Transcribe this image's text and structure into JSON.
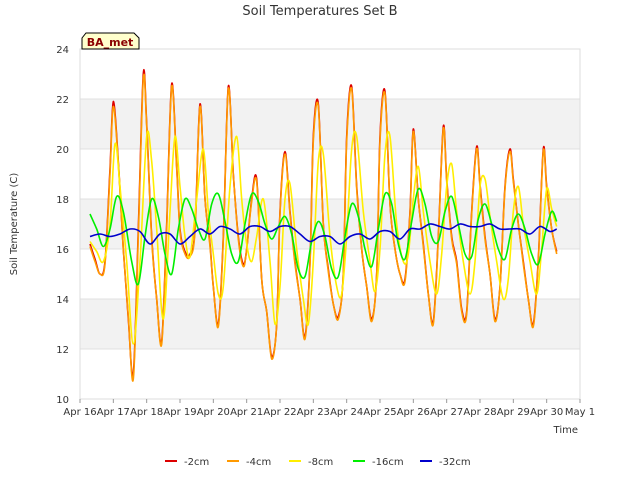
{
  "chart_data": {
    "type": "line",
    "title": "Soil Temperatures Set B",
    "xlabel": "Time",
    "ylabel": "Soil Temperature (C)",
    "site_badge": "BA_met",
    "ylim": [
      10,
      24
    ],
    "yticks": [
      10,
      12,
      14,
      16,
      18,
      20,
      22,
      24
    ],
    "xlim": [
      "2024-04-16",
      "2024-05-01"
    ],
    "xtick_labels": [
      "Apr 16",
      "Apr 17",
      "Apr 18",
      "Apr 19",
      "Apr 20",
      "Apr 21",
      "Apr 22",
      "Apr 23",
      "Apr 24",
      "Apr 25",
      "Apr 26",
      "Apr 27",
      "Apr 28",
      "Apr 29",
      "Apr 30",
      "May 1"
    ],
    "grid": "horizontal bands",
    "legend_position": "bottom",
    "x_unit": "days since Apr 16",
    "series": [
      {
        "name": "-2cm",
        "color": "#dd0000",
        "x": [
          0.3,
          0.45,
          0.6,
          0.75,
          0.9,
          1.0,
          1.15,
          1.3,
          1.45,
          1.6,
          1.75,
          1.9,
          2.0,
          2.15,
          2.3,
          2.45,
          2.6,
          2.75,
          2.9,
          3.0,
          3.15,
          3.3,
          3.45,
          3.6,
          3.75,
          3.9,
          4.0,
          4.15,
          4.3,
          4.45,
          4.6,
          4.75,
          4.9,
          5.0,
          5.15,
          5.3,
          5.45,
          5.6,
          5.75,
          5.9,
          6.0,
          6.15,
          6.3,
          6.45,
          6.6,
          6.75,
          6.9,
          7.0,
          7.15,
          7.3,
          7.45,
          7.6,
          7.75,
          7.9,
          8.0,
          8.15,
          8.3,
          8.45,
          8.6,
          8.75,
          8.9,
          9.0,
          9.15,
          9.3,
          9.45,
          9.6,
          9.75,
          9.9,
          10.0,
          10.15,
          10.3,
          10.45,
          10.6,
          10.75,
          10.9,
          11.0,
          11.15,
          11.3,
          11.45,
          11.6,
          11.75,
          11.9,
          12.0,
          12.15,
          12.3,
          12.45,
          12.6,
          12.75,
          12.9,
          13.0,
          13.15,
          13.3,
          13.45,
          13.6,
          13.75,
          13.9,
          14.0,
          14.15,
          14.3
        ],
        "y": [
          16.2,
          15.6,
          15.0,
          15.5,
          19.2,
          21.9,
          19.5,
          16.0,
          13.2,
          11.0,
          16.8,
          23.0,
          21.0,
          16.5,
          14.0,
          12.3,
          17.0,
          22.6,
          19.3,
          16.8,
          15.9,
          15.8,
          16.8,
          21.8,
          18.0,
          16.2,
          14.5,
          13.0,
          16.5,
          22.5,
          19.0,
          16.5,
          15.4,
          16.0,
          18.0,
          18.8,
          14.8,
          13.5,
          11.7,
          13.0,
          17.5,
          19.9,
          17.5,
          15.5,
          14.0,
          12.5,
          15.5,
          20.5,
          21.8,
          17.0,
          15.2,
          13.8,
          13.3,
          15.0,
          20.5,
          22.5,
          18.5,
          16.0,
          14.5,
          13.2,
          15.0,
          20.5,
          22.3,
          17.8,
          16.0,
          15.0,
          14.8,
          17.5,
          20.8,
          18.0,
          16.2,
          14.2,
          13.1,
          16.5,
          20.9,
          18.8,
          16.5,
          15.5,
          13.6,
          13.5,
          17.5,
          20.1,
          18.6,
          16.5,
          15.0,
          13.2,
          14.5,
          18.5,
          20.0,
          18.8,
          17.0,
          15.5,
          14.0,
          13.0,
          15.6,
          20.0,
          18.5,
          16.8,
          15.9
        ]
      },
      {
        "name": "-4cm",
        "color": "#ff9900",
        "x": [
          0.3,
          0.45,
          0.6,
          0.75,
          0.9,
          1.0,
          1.15,
          1.3,
          1.45,
          1.6,
          1.75,
          1.9,
          2.0,
          2.15,
          2.3,
          2.45,
          2.6,
          2.75,
          2.9,
          3.0,
          3.15,
          3.3,
          3.45,
          3.6,
          3.75,
          3.9,
          4.0,
          4.15,
          4.3,
          4.45,
          4.6,
          4.75,
          4.9,
          5.0,
          5.15,
          5.3,
          5.45,
          5.6,
          5.75,
          5.9,
          6.0,
          6.15,
          6.3,
          6.45,
          6.6,
          6.75,
          6.9,
          7.0,
          7.15,
          7.3,
          7.45,
          7.6,
          7.75,
          7.9,
          8.0,
          8.15,
          8.3,
          8.45,
          8.6,
          8.75,
          8.9,
          9.0,
          9.15,
          9.3,
          9.45,
          9.6,
          9.75,
          9.9,
          10.0,
          10.15,
          10.3,
          10.45,
          10.6,
          10.75,
          10.9,
          11.0,
          11.15,
          11.3,
          11.45,
          11.6,
          11.75,
          11.9,
          12.0,
          12.15,
          12.3,
          12.45,
          12.6,
          12.75,
          12.9,
          13.0,
          13.15,
          13.3,
          13.45,
          13.6,
          13.75,
          13.9,
          14.0,
          14.15,
          14.3
        ],
        "y": [
          16.1,
          15.5,
          15.0,
          15.4,
          19.0,
          21.7,
          19.4,
          16.0,
          13.3,
          10.8,
          16.5,
          22.8,
          20.9,
          16.4,
          14.0,
          12.2,
          16.8,
          22.5,
          19.2,
          16.7,
          15.8,
          15.7,
          16.7,
          21.7,
          18.0,
          16.1,
          14.5,
          12.9,
          16.4,
          22.4,
          19.0,
          16.4,
          15.3,
          16.0,
          17.9,
          18.7,
          14.8,
          13.5,
          11.6,
          13.0,
          17.4,
          19.8,
          17.4,
          15.4,
          14.0,
          12.4,
          15.4,
          20.3,
          21.7,
          17.0,
          15.1,
          13.8,
          13.2,
          15.0,
          20.3,
          22.4,
          18.4,
          16.0,
          14.5,
          13.1,
          15.0,
          20.3,
          22.2,
          17.8,
          16.0,
          15.0,
          14.7,
          17.4,
          20.7,
          18.0,
          16.1,
          14.2,
          13.0,
          16.4,
          20.8,
          18.7,
          16.4,
          15.4,
          13.5,
          13.4,
          17.4,
          20.0,
          18.5,
          16.4,
          15.0,
          13.1,
          14.5,
          18.4,
          19.9,
          18.7,
          17.0,
          15.4,
          14.0,
          12.9,
          15.5,
          19.9,
          18.4,
          16.8,
          15.8
        ]
      },
      {
        "name": "-8cm",
        "color": "#ffee00",
        "x": [
          0.3,
          0.5,
          0.7,
          0.9,
          1.05,
          1.2,
          1.4,
          1.6,
          1.8,
          2.0,
          2.15,
          2.3,
          2.5,
          2.7,
          2.85,
          3.0,
          3.15,
          3.3,
          3.5,
          3.7,
          3.85,
          4.0,
          4.15,
          4.3,
          4.5,
          4.7,
          4.85,
          5.0,
          5.15,
          5.3,
          5.5,
          5.7,
          5.85,
          6.0,
          6.15,
          6.3,
          6.5,
          6.7,
          6.85,
          7.0,
          7.15,
          7.3,
          7.5,
          7.7,
          7.85,
          8.0,
          8.15,
          8.3,
          8.5,
          8.7,
          8.85,
          9.0,
          9.15,
          9.3,
          9.5,
          9.7,
          9.85,
          10.0,
          10.15,
          10.3,
          10.5,
          10.7,
          10.85,
          11.0,
          11.15,
          11.3,
          11.5,
          11.7,
          11.85,
          12.0,
          12.15,
          12.3,
          12.5,
          12.7,
          12.85,
          13.0,
          13.15,
          13.3,
          13.5,
          13.7,
          13.85,
          14.0,
          14.15,
          14.3
        ],
        "y": [
          16.3,
          15.9,
          15.5,
          17.0,
          20.2,
          18.5,
          15.5,
          12.2,
          15.5,
          20.5,
          19.5,
          16.8,
          13.2,
          17.5,
          20.5,
          18.5,
          16.5,
          15.7,
          18.0,
          20.0,
          17.5,
          15.8,
          14.2,
          14.5,
          18.5,
          20.5,
          18.0,
          16.2,
          15.5,
          16.5,
          18.0,
          15.5,
          13.0,
          14.5,
          18.0,
          18.6,
          16.0,
          14.0,
          13.0,
          15.5,
          19.5,
          19.8,
          16.5,
          14.5,
          14.2,
          16.5,
          20.0,
          20.5,
          17.5,
          15.5,
          14.3,
          16.0,
          19.8,
          20.5,
          17.0,
          15.5,
          15.8,
          18.0,
          19.3,
          17.5,
          15.5,
          14.2,
          15.8,
          18.5,
          19.4,
          17.5,
          15.5,
          14.2,
          15.5,
          18.5,
          18.8,
          17.3,
          15.5,
          14.0,
          14.8,
          17.5,
          18.5,
          17.0,
          15.5,
          14.2,
          16.0,
          18.4,
          17.6,
          16.9
        ]
      },
      {
        "name": "-16cm",
        "color": "#00ee00",
        "x": [
          0.3,
          0.5,
          0.7,
          0.9,
          1.1,
          1.3,
          1.55,
          1.75,
          1.95,
          2.15,
          2.35,
          2.55,
          2.75,
          2.95,
          3.15,
          3.35,
          3.55,
          3.75,
          3.95,
          4.15,
          4.35,
          4.55,
          4.75,
          4.95,
          5.15,
          5.35,
          5.55,
          5.75,
          5.95,
          6.15,
          6.35,
          6.55,
          6.75,
          6.95,
          7.15,
          7.35,
          7.55,
          7.75,
          7.95,
          8.15,
          8.35,
          8.55,
          8.75,
          8.95,
          9.15,
          9.35,
          9.55,
          9.75,
          9.95,
          10.15,
          10.35,
          10.55,
          10.75,
          10.95,
          11.15,
          11.35,
          11.55,
          11.75,
          11.95,
          12.15,
          12.35,
          12.55,
          12.75,
          12.95,
          13.15,
          13.35,
          13.55,
          13.75,
          13.95,
          14.15,
          14.3
        ],
        "y": [
          17.4,
          16.8,
          16.1,
          16.8,
          18.1,
          17.5,
          15.5,
          14.6,
          16.5,
          18.0,
          17.3,
          15.8,
          15.0,
          16.8,
          18.0,
          17.6,
          16.8,
          16.4,
          17.8,
          18.2,
          17.1,
          15.8,
          15.5,
          17.0,
          18.2,
          17.9,
          17.0,
          16.4,
          16.9,
          17.3,
          16.6,
          15.2,
          14.9,
          16.3,
          17.1,
          16.5,
          15.2,
          14.9,
          16.5,
          17.8,
          17.3,
          16.0,
          15.3,
          16.8,
          18.2,
          17.8,
          16.2,
          15.6,
          17.1,
          18.4,
          17.8,
          16.5,
          16.3,
          17.5,
          18.1,
          17.0,
          15.8,
          15.7,
          17.2,
          17.8,
          17.0,
          16.0,
          15.6,
          16.8,
          17.4,
          16.8,
          15.8,
          15.4,
          16.6,
          17.5,
          17.1
        ]
      },
      {
        "name": "-32cm",
        "color": "#0000cc",
        "x": [
          0.3,
          0.6,
          0.9,
          1.2,
          1.5,
          1.8,
          2.1,
          2.4,
          2.7,
          3.0,
          3.3,
          3.6,
          3.9,
          4.2,
          4.5,
          4.8,
          5.1,
          5.4,
          5.7,
          6.0,
          6.3,
          6.6,
          6.9,
          7.2,
          7.5,
          7.8,
          8.1,
          8.4,
          8.7,
          9.0,
          9.3,
          9.6,
          9.9,
          10.2,
          10.5,
          10.8,
          11.1,
          11.4,
          11.7,
          12.0,
          12.3,
          12.6,
          12.9,
          13.2,
          13.5,
          13.8,
          14.1,
          14.3
        ],
        "y": [
          16.5,
          16.6,
          16.5,
          16.6,
          16.8,
          16.7,
          16.2,
          16.6,
          16.6,
          16.2,
          16.5,
          16.8,
          16.6,
          16.9,
          16.8,
          16.6,
          16.9,
          16.9,
          16.7,
          16.9,
          16.9,
          16.6,
          16.3,
          16.5,
          16.5,
          16.2,
          16.5,
          16.6,
          16.4,
          16.7,
          16.7,
          16.4,
          16.8,
          16.8,
          17.0,
          16.9,
          16.8,
          17.0,
          16.9,
          16.9,
          17.0,
          16.8,
          16.8,
          16.8,
          16.6,
          16.9,
          16.7,
          16.8
        ]
      }
    ]
  }
}
